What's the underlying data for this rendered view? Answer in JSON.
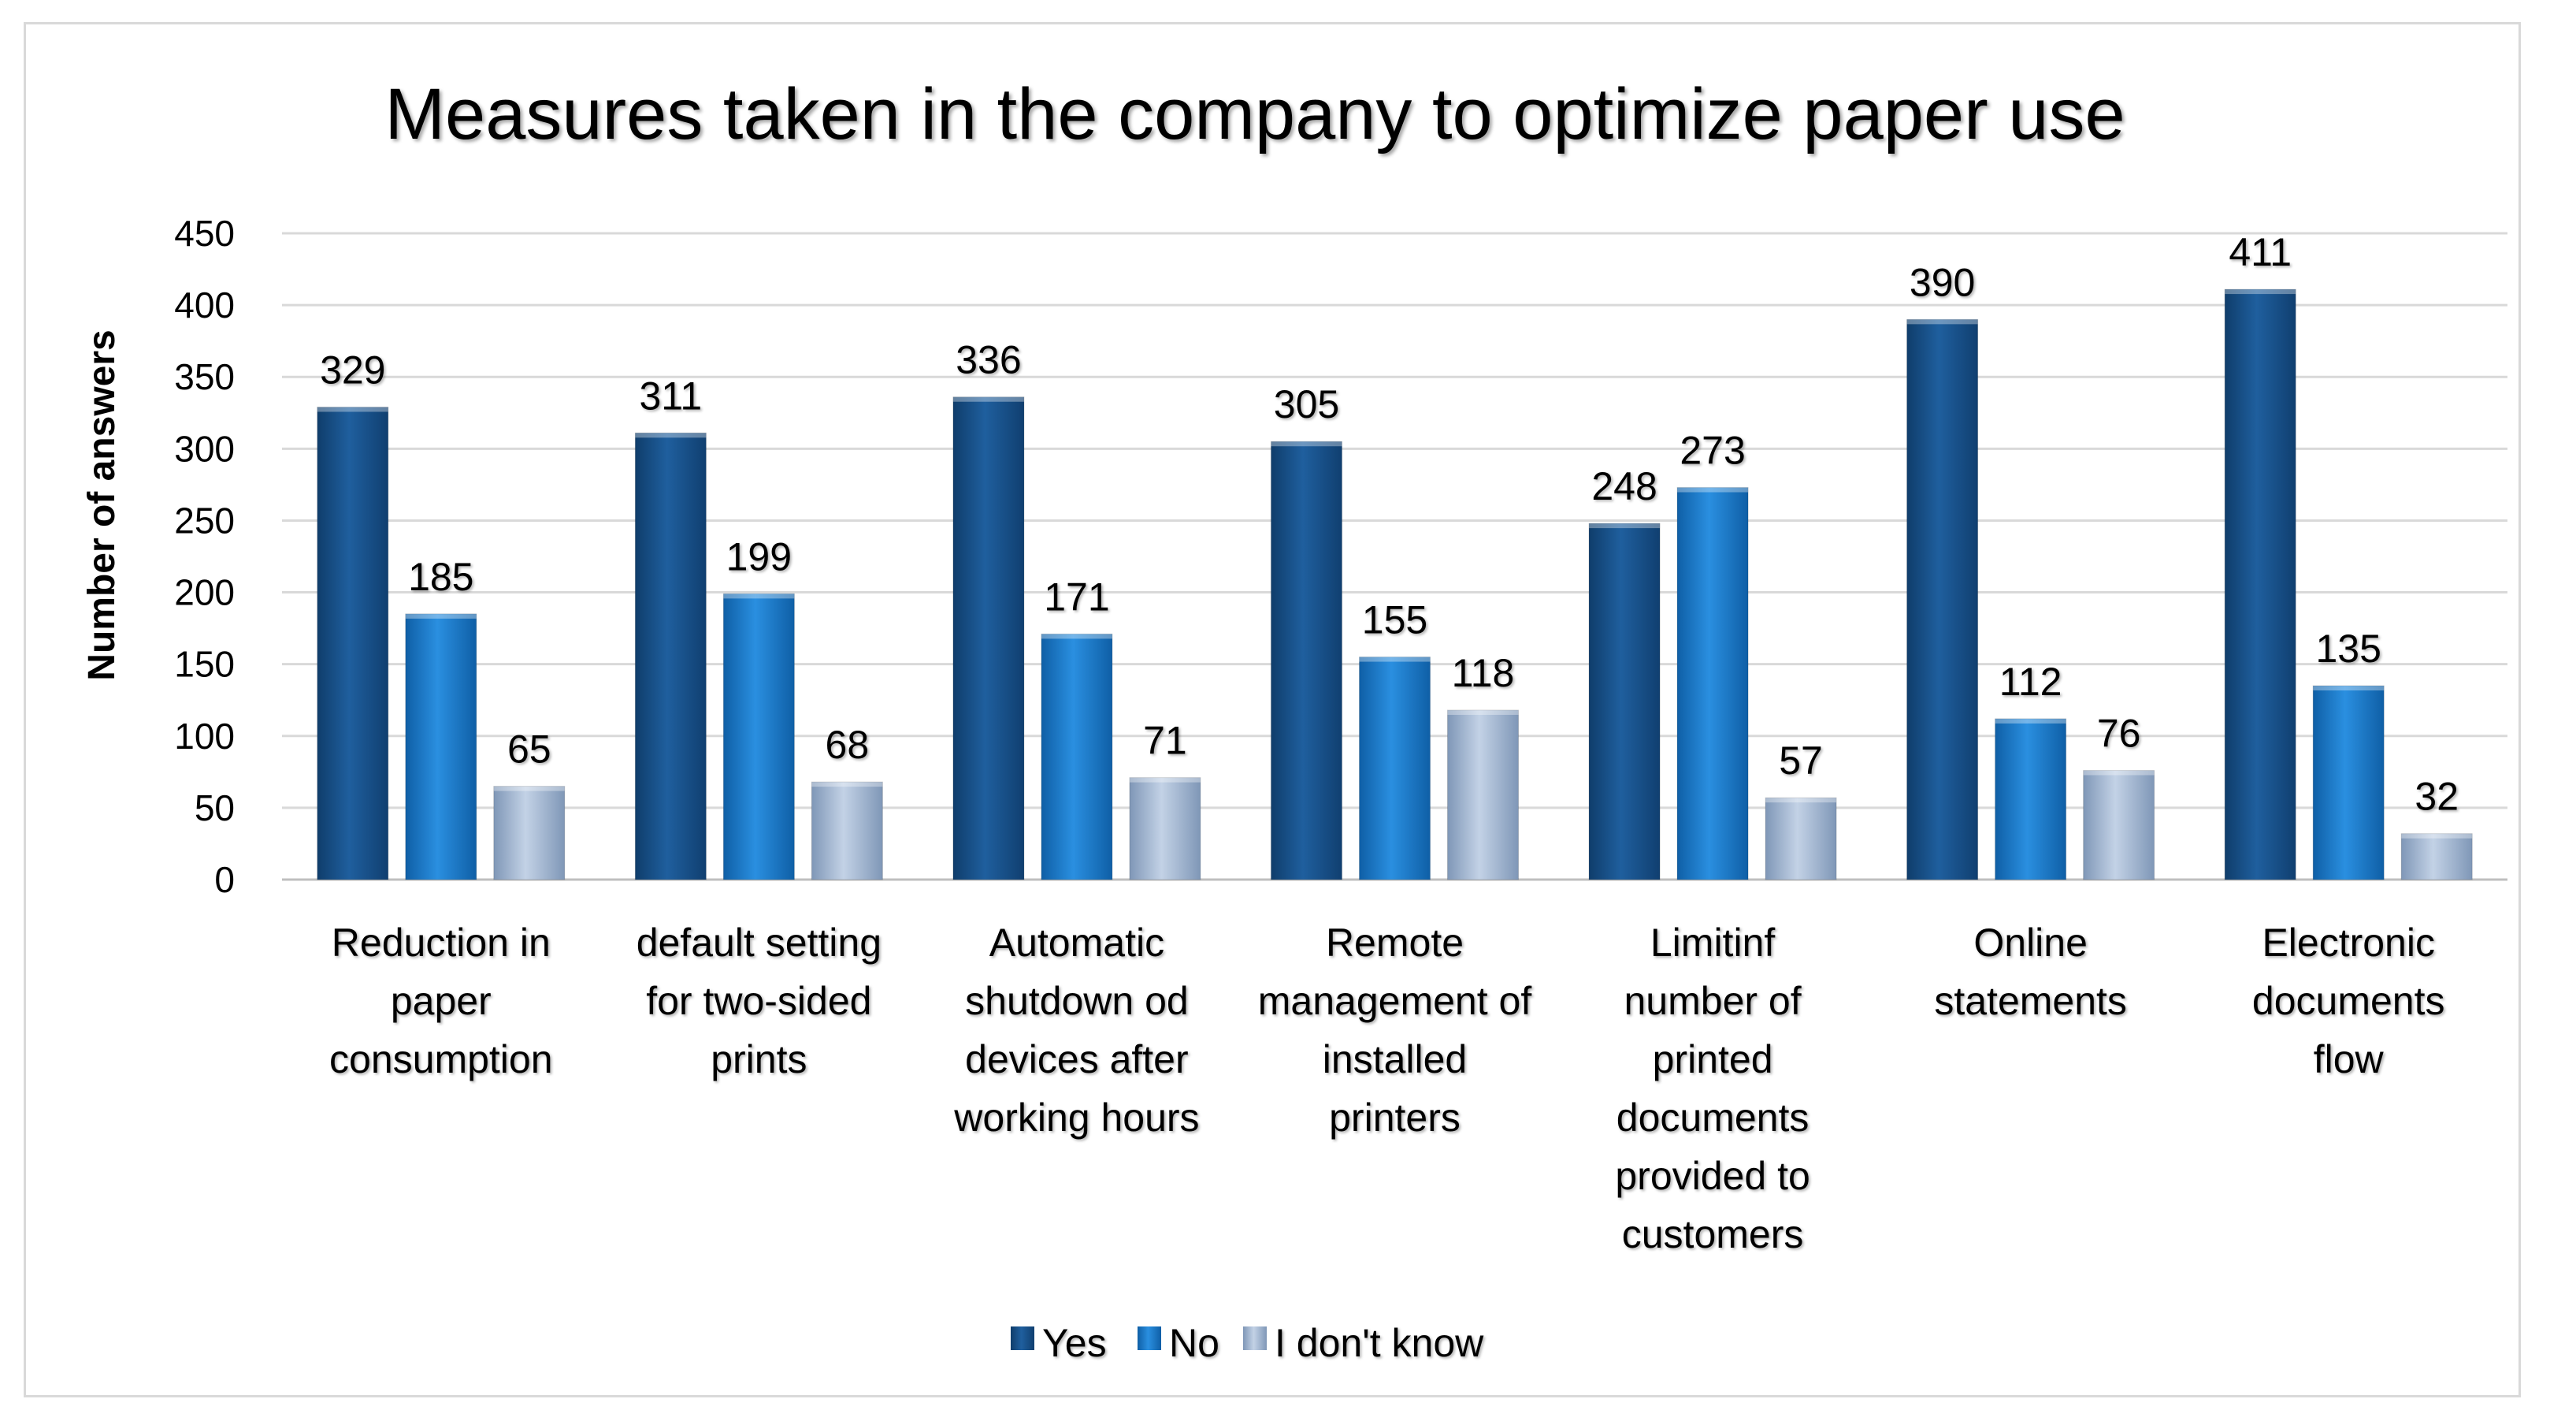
{
  "chart_data": {
    "type": "bar",
    "title": "Measures taken in the company to optimize paper use",
    "xlabel": "",
    "ylabel": "Number of answers",
    "ylim": [
      0,
      450
    ],
    "yticks": [
      0,
      50,
      100,
      150,
      200,
      250,
      300,
      350,
      400,
      450
    ],
    "grid": true,
    "legend_position": "bottom",
    "categories": [
      [
        "Reduction in",
        "paper",
        "consumption"
      ],
      [
        "default setting",
        "for two-sided",
        "prints"
      ],
      [
        "Automatic",
        "shutdown od",
        "devices after",
        "working hours"
      ],
      [
        "Remote",
        "management of",
        "installed",
        "printers"
      ],
      [
        "Limitinf",
        "number of",
        "printed",
        "documents",
        "provided to",
        "customers"
      ],
      [
        "Online",
        "statements"
      ],
      [
        "Electronic",
        "documents",
        "flow"
      ]
    ],
    "series": [
      {
        "name": "Yes",
        "color": "#1f5f9e",
        "values": [
          329,
          311,
          336,
          305,
          248,
          390,
          411
        ]
      },
      {
        "name": "No",
        "color": "#1b7ed1",
        "values": [
          185,
          199,
          171,
          155,
          273,
          112,
          135
        ]
      },
      {
        "name": "I don't know",
        "color": "#9db3cf",
        "values": [
          65,
          68,
          71,
          118,
          57,
          76,
          32
        ]
      }
    ]
  }
}
